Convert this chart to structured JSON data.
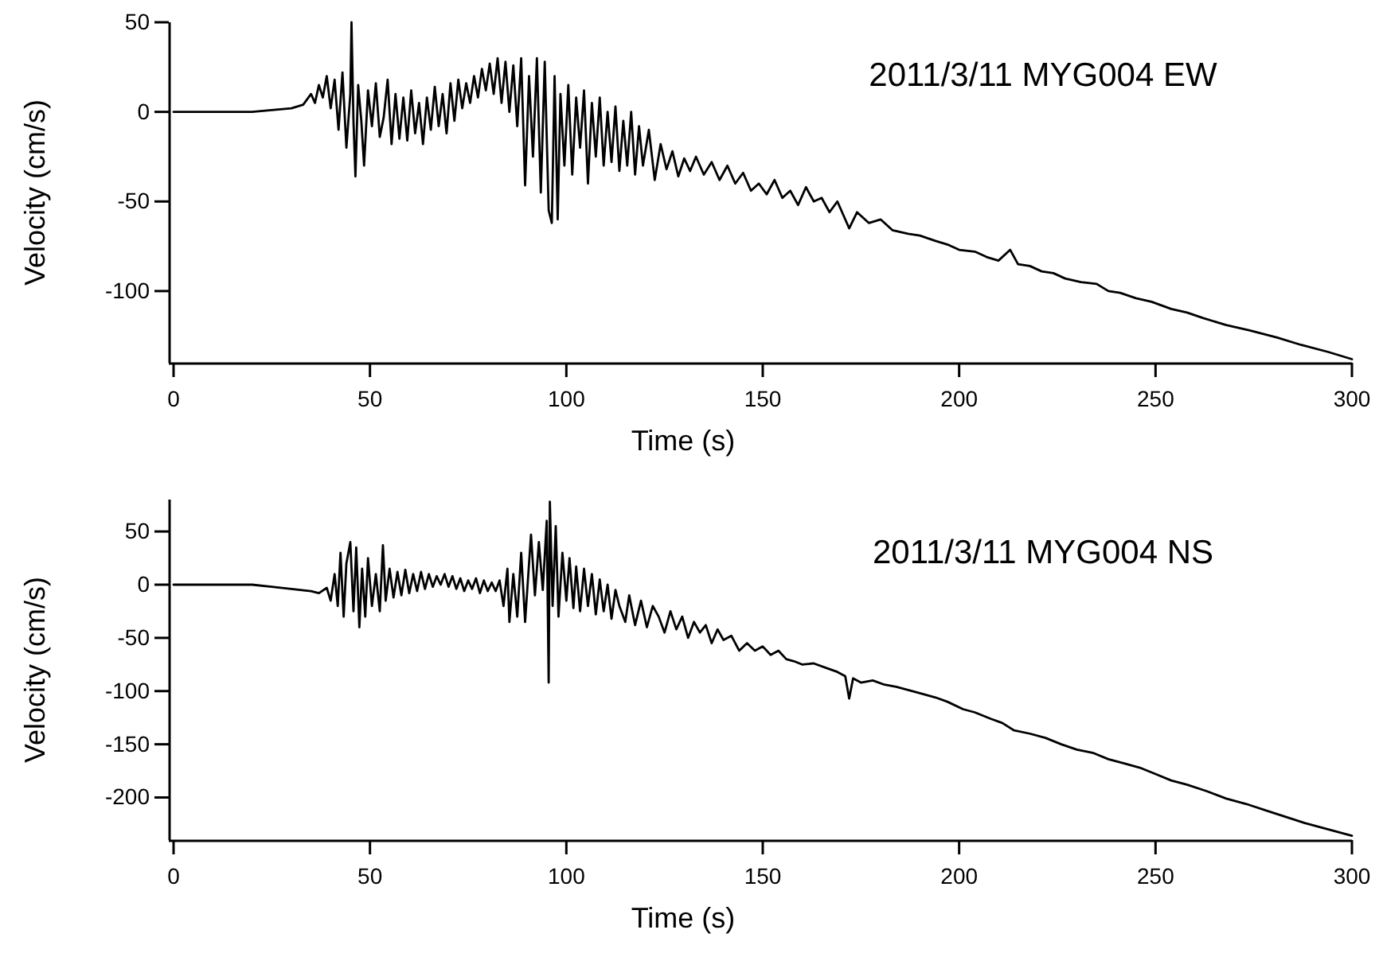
{
  "chart_data": [
    {
      "type": "line",
      "title": "2011/3/11 MYG004 EW",
      "xlabel": "Time (s)",
      "ylabel": "Velocity (cm/s)",
      "xlim": [
        0,
        300
      ],
      "xticks": [
        0,
        50,
        100,
        150,
        200,
        250,
        300
      ],
      "ylim": [
        -140,
        50
      ],
      "yticks": [
        -100,
        -50,
        0,
        50
      ],
      "series": [
        {
          "color": "#000000",
          "x": [
            0,
            20,
            25,
            30,
            33,
            35,
            36,
            37,
            38,
            39,
            40,
            41,
            42,
            43,
            44,
            45,
            45.3,
            45.8,
            46.3,
            47,
            47.8,
            48.5,
            49.5,
            50.5,
            51.5,
            52.5,
            53.5,
            54.5,
            55.5,
            56.5,
            57.5,
            58.5,
            59.5,
            60.5,
            61.5,
            62.5,
            63.5,
            64.5,
            65.5,
            66.5,
            67.5,
            68.5,
            69.5,
            70.5,
            71.5,
            72.5,
            73.5,
            74.5,
            75.5,
            76.5,
            77.5,
            78.5,
            79.5,
            80.5,
            81.5,
            82.5,
            83.5,
            84.5,
            85.5,
            86.5,
            87.5,
            88.5,
            89.5,
            90.5,
            91.5,
            92.5,
            93.5,
            94.5,
            95.5,
            96.3,
            97,
            97.8,
            98.5,
            99.5,
            100.5,
            101.5,
            102.5,
            103.5,
            104.5,
            105.5,
            106.5,
            107.5,
            108.5,
            109.5,
            110.5,
            111.5,
            112.5,
            113.5,
            114.5,
            115.5,
            116.5,
            117.5,
            118.5,
            119.5,
            121,
            122.5,
            124,
            125.5,
            127,
            128.5,
            130,
            131.5,
            133,
            135,
            137,
            139,
            141,
            143,
            145,
            147,
            149,
            151,
            153,
            155,
            157,
            159,
            161,
            163,
            165,
            167,
            169,
            171,
            172,
            174,
            177,
            180,
            183,
            187,
            190,
            194,
            197,
            200,
            204,
            207,
            210,
            213,
            215,
            218,
            221,
            224,
            227,
            231,
            235,
            238,
            241,
            245,
            249,
            254,
            258,
            262,
            268,
            274,
            281,
            287,
            294,
            300
          ],
          "values": [
            0,
            0,
            1,
            2,
            4,
            10,
            5,
            15,
            8,
            20,
            2,
            18,
            -10,
            22,
            -20,
            10,
            50,
            -5,
            -36,
            15,
            -5,
            -30,
            12,
            -8,
            16,
            -14,
            -3,
            18,
            -18,
            10,
            -15,
            8,
            -16,
            12,
            -12,
            5,
            -18,
            8,
            -10,
            14,
            -8,
            10,
            -12,
            16,
            -5,
            18,
            2,
            16,
            5,
            20,
            8,
            24,
            12,
            27,
            10,
            30,
            5,
            28,
            0,
            26,
            -8,
            30,
            -41,
            20,
            -25,
            30,
            -45,
            28,
            -55,
            -62,
            20,
            -60,
            10,
            -30,
            15,
            -35,
            8,
            -20,
            12,
            -40,
            5,
            -25,
            8,
            -30,
            0,
            -28,
            3,
            -33,
            -5,
            -30,
            0,
            -35,
            -8,
            -30,
            -10,
            -38,
            -18,
            -32,
            -22,
            -36,
            -26,
            -33,
            -25,
            -35,
            -28,
            -38,
            -30,
            -40,
            -34,
            -44,
            -40,
            -46,
            -38,
            -48,
            -44,
            -52,
            -42,
            -50,
            -48,
            -56,
            -50,
            -60,
            -65,
            -56,
            -62,
            -60,
            -66,
            -68,
            -69,
            -72,
            -74,
            -77,
            -78,
            -81,
            -83,
            -77,
            -85,
            -86,
            -89,
            -90,
            -93,
            -95,
            -96,
            -100,
            -101,
            -104,
            -106,
            -110,
            -112,
            -115,
            -119,
            -122,
            -126,
            -130,
            -134,
            -138
          ]
        }
      ]
    },
    {
      "type": "line",
      "title": "2011/3/11 MYG004 NS",
      "xlabel": "Time (s)",
      "ylabel": "Velocity (cm/s)",
      "xlim": [
        0,
        300
      ],
      "xticks": [
        0,
        50,
        100,
        150,
        200,
        250,
        300
      ],
      "ylim": [
        -240,
        80
      ],
      "yticks": [
        -200,
        -150,
        -100,
        -50,
        0,
        50
      ],
      "series": [
        {
          "color": "#000000",
          "x": [
            0,
            20,
            25,
            30,
            35,
            37,
            39,
            40,
            41,
            41.8,
            42.5,
            43.3,
            44,
            45,
            45.8,
            46.5,
            47.3,
            48,
            48.8,
            49.5,
            50.5,
            51.5,
            52.5,
            53.3,
            54,
            55,
            56,
            57,
            58,
            59,
            60,
            61,
            62,
            63,
            64,
            65,
            66,
            67,
            68,
            69,
            70,
            71,
            72,
            73,
            74,
            75,
            76,
            77,
            78,
            79,
            80,
            81,
            82,
            83,
            84,
            85,
            85.5,
            86.5,
            87.5,
            88.5,
            89.5,
            90.5,
            91,
            92,
            93,
            94,
            95,
            95.5,
            95.8,
            96.5,
            97.3,
            98,
            99,
            100,
            100.8,
            101.8,
            102.5,
            103.5,
            104.5,
            105.5,
            106.5,
            107.5,
            108.5,
            109.5,
            110.5,
            111.5,
            112.5,
            113.5,
            115,
            116,
            117.5,
            119,
            120.5,
            122,
            123.5,
            125,
            126.5,
            128,
            129.5,
            131,
            132.5,
            134,
            135.5,
            137,
            138.5,
            140,
            142,
            144,
            146,
            148,
            150,
            152,
            154,
            156,
            158,
            160,
            163,
            166,
            169,
            171,
            172,
            173,
            175,
            178,
            181,
            184,
            187,
            190,
            194,
            197,
            201,
            204,
            208,
            211,
            214,
            218,
            222,
            226,
            230,
            234,
            238,
            242,
            246,
            250,
            254,
            258,
            263,
            268,
            273,
            278,
            283,
            288,
            294,
            300
          ],
          "values": [
            0,
            0,
            -2,
            -4,
            -6,
            -8,
            -3,
            -15,
            10,
            -20,
            30,
            -30,
            20,
            40,
            -25,
            35,
            -40,
            15,
            -30,
            25,
            -20,
            10,
            -25,
            37,
            -15,
            15,
            -12,
            12,
            -10,
            14,
            -8,
            10,
            -6,
            12,
            -4,
            10,
            -2,
            8,
            0,
            10,
            -2,
            8,
            -4,
            6,
            -6,
            4,
            -4,
            6,
            -8,
            4,
            -6,
            2,
            -6,
            4,
            -20,
            15,
            -35,
            10,
            -30,
            30,
            -35,
            20,
            47,
            -10,
            40,
            -5,
            60,
            -92,
            78,
            -20,
            55,
            -30,
            30,
            -15,
            25,
            -22,
            17,
            -25,
            15,
            -20,
            10,
            -28,
            5,
            -25,
            0,
            -32,
            -5,
            -20,
            -35,
            -10,
            -38,
            -15,
            -40,
            -20,
            -30,
            -45,
            -25,
            -42,
            -30,
            -50,
            -35,
            -45,
            -38,
            -55,
            -42,
            -52,
            -48,
            -62,
            -55,
            -62,
            -58,
            -66,
            -62,
            -70,
            -72,
            -75,
            -74,
            -78,
            -82,
            -86,
            -107,
            -88,
            -92,
            -90,
            -94,
            -96,
            -99,
            -102,
            -106,
            -110,
            -117,
            -120,
            -126,
            -130,
            -137,
            -140,
            -144,
            -150,
            -155,
            -158,
            -164,
            -168,
            -172,
            -178,
            -184,
            -188,
            -194,
            -201,
            -206,
            -212,
            -218,
            -224,
            -230,
            -236
          ]
        }
      ]
    }
  ]
}
